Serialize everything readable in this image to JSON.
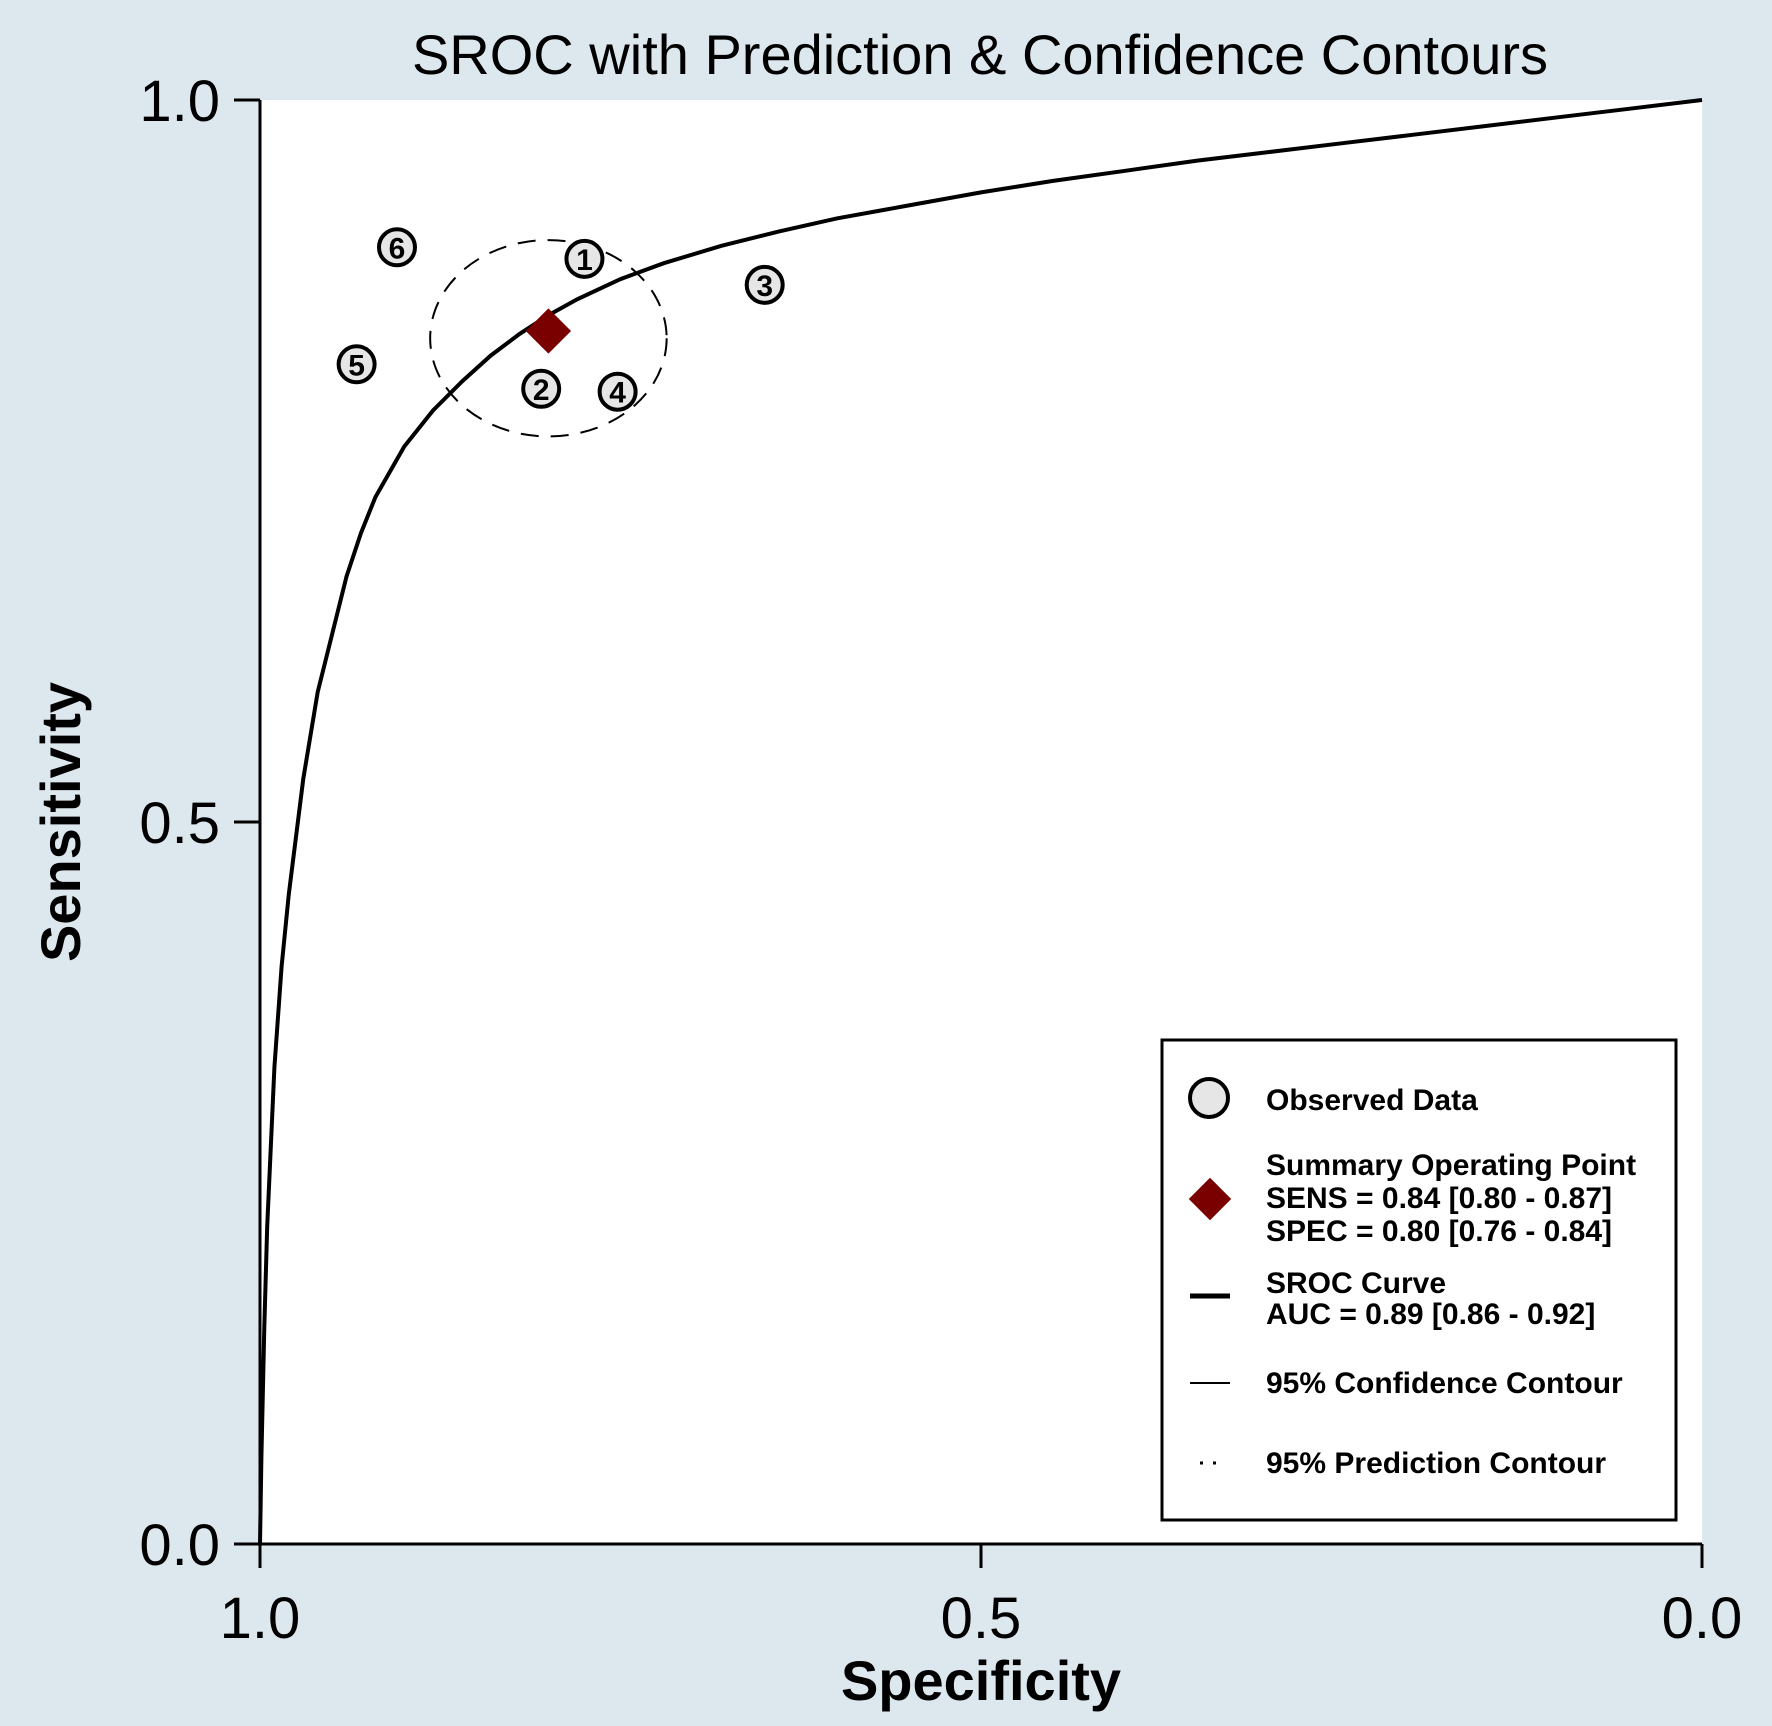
{
  "chart_data": {
    "type": "scatter",
    "title": "SROC with Prediction & Confidence Contours",
    "xlabel": "Specificity",
    "ylabel": "Sensitivity",
    "xlim": [
      1.0,
      0.0
    ],
    "ylim": [
      0.0,
      1.0
    ],
    "x_reversed": true,
    "x_ticks": [
      "1.0",
      "0.5",
      "0.0"
    ],
    "y_ticks": [
      "0.0",
      "0.5",
      "1.0"
    ],
    "grid": false,
    "legend_position": "bottom-right",
    "observed": [
      {
        "label": "1",
        "spec": 0.775,
        "sens": 0.89
      },
      {
        "label": "2",
        "spec": 0.805,
        "sens": 0.8
      },
      {
        "label": "3",
        "spec": 0.65,
        "sens": 0.872
      },
      {
        "label": "4",
        "spec": 0.752,
        "sens": 0.798
      },
      {
        "label": "5",
        "spec": 0.933,
        "sens": 0.817
      },
      {
        "label": "6",
        "spec": 0.905,
        "sens": 0.898
      }
    ],
    "summary_point": {
      "spec": 0.8,
      "sens": 0.84
    },
    "confidence_contour": {
      "center_spec": 0.8,
      "center_sens": 0.835,
      "radius_spec": 0.082,
      "radius_sens": 0.068
    },
    "sroc_curve": {
      "spec": [
        1.0,
        0.999,
        0.997,
        0.995,
        0.99,
        0.985,
        0.98,
        0.97,
        0.96,
        0.95,
        0.94,
        0.93,
        0.92,
        0.9,
        0.88,
        0.86,
        0.84,
        0.82,
        0.8,
        0.78,
        0.75,
        0.72,
        0.68,
        0.64,
        0.6,
        0.55,
        0.5,
        0.45,
        0.4,
        0.35,
        0.3,
        0.25,
        0.2,
        0.15,
        0.1,
        0.05,
        0.0
      ],
      "sens": [
        0.0,
        0.06,
        0.15,
        0.22,
        0.33,
        0.4,
        0.45,
        0.53,
        0.59,
        0.63,
        0.67,
        0.7,
        0.725,
        0.76,
        0.785,
        0.805,
        0.823,
        0.838,
        0.851,
        0.862,
        0.876,
        0.887,
        0.899,
        0.909,
        0.918,
        0.927,
        0.936,
        0.944,
        0.951,
        0.958,
        0.964,
        0.97,
        0.976,
        0.982,
        0.988,
        0.994,
        1.0
      ]
    },
    "legend": {
      "observed": "Observed Data",
      "summary_title": "Summary Operating Point",
      "summary_sens": "SENS = 0.84 [0.80 - 0.87]",
      "summary_spec": "SPEC = 0.80 [0.76 - 0.84]",
      "sroc_title": "SROC Curve",
      "sroc_auc": "AUC = 0.89 [0.86 - 0.92]",
      "confidence": "95% Confidence Contour",
      "prediction": "95% Prediction Contour"
    },
    "colors": {
      "background": "#dde7ee",
      "plot_area": "#ffffff",
      "summary_marker": "#7a0000",
      "observed_fill": "#e6e6e6",
      "line": "#000000"
    }
  }
}
